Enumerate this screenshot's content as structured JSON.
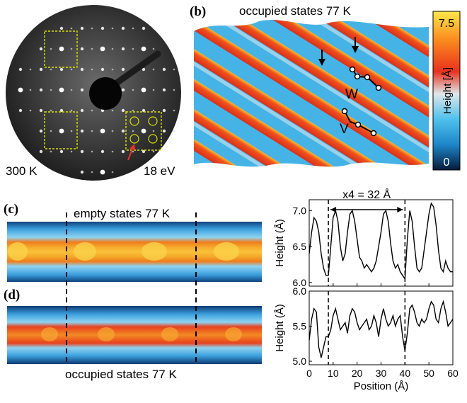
{
  "panels": {
    "a": {
      "label": "(a)",
      "temperature": "300 K",
      "energy": "18 eV"
    },
    "b": {
      "label": "(b)",
      "title": "occupied states  77 K",
      "colorbar": {
        "max": "7.5",
        "min": "0",
        "label": "Height [Å]",
        "colors": [
          "#fde84a",
          "#fb8a1e",
          "#e8321e",
          "#dfe6ea",
          "#4fc1ec",
          "#1d86c9",
          "#071a3a"
        ]
      },
      "chain_labels": [
        "W",
        "V"
      ]
    },
    "c": {
      "label": "(c)",
      "title": "empty states  77 K"
    },
    "d": {
      "label": "(d)",
      "title": "occupied states  77 K"
    }
  },
  "chart_data": [
    {
      "type": "line",
      "annotation": "x4 = 32 Å",
      "ylabel": "Height (Å)",
      "ylim": [
        5.95,
        7.15
      ],
      "yticks": [
        "6.0",
        "6.5",
        "7.0"
      ],
      "xlim": [
        0,
        60
      ],
      "vlines": [
        8,
        40
      ],
      "x": [
        0,
        1,
        2,
        3,
        4,
        5,
        6,
        7,
        8,
        9,
        10,
        11,
        12,
        13,
        14,
        15,
        16,
        17,
        18,
        19,
        20,
        21,
        22,
        23,
        24,
        25,
        26,
        27,
        28,
        29,
        30,
        31,
        32,
        33,
        34,
        35,
        36,
        37,
        38,
        39,
        40,
        41,
        42,
        43,
        44,
        45,
        46,
        47,
        48,
        49,
        50,
        51,
        52,
        53,
        54,
        55,
        56,
        57,
        58,
        59,
        60
      ],
      "y": [
        6.4,
        6.7,
        6.9,
        6.85,
        6.7,
        6.4,
        6.2,
        6.1,
        6.1,
        6.5,
        6.9,
        7.0,
        6.85,
        6.5,
        6.3,
        6.4,
        6.7,
        6.95,
        7.0,
        6.85,
        6.6,
        6.35,
        6.3,
        6.2,
        6.25,
        6.2,
        6.15,
        6.2,
        6.3,
        6.5,
        6.7,
        6.95,
        7.0,
        6.85,
        6.55,
        6.3,
        6.2,
        6.25,
        6.15,
        6.1,
        6.05,
        6.6,
        7.0,
        6.85,
        6.5,
        6.2,
        6.15,
        6.2,
        6.45,
        6.7,
        6.95,
        7.1,
        7.05,
        6.8,
        6.45,
        6.2,
        6.15,
        6.3,
        6.2,
        6.15,
        6.15
      ]
    },
    {
      "type": "line",
      "ylabel": "Height (Å)",
      "xlabel": "Position (Å)",
      "ylim": [
        4.95,
        6.0
      ],
      "yticks": [
        "5.0",
        "5.5",
        "6.0"
      ],
      "xlim": [
        0,
        60
      ],
      "xticks": [
        "0",
        "10",
        "20",
        "30",
        "40",
        "50",
        "60"
      ],
      "vlines": [
        8,
        40
      ],
      "x": [
        0,
        1,
        2,
        3,
        4,
        5,
        6,
        7,
        8,
        9,
        10,
        11,
        12,
        13,
        14,
        15,
        16,
        17,
        18,
        19,
        20,
        21,
        22,
        23,
        24,
        25,
        26,
        27,
        28,
        29,
        30,
        31,
        32,
        33,
        34,
        35,
        36,
        37,
        38,
        39,
        40,
        41,
        42,
        43,
        44,
        45,
        46,
        47,
        48,
        49,
        50,
        51,
        52,
        53,
        54,
        55,
        56,
        57,
        58,
        59,
        60
      ],
      "y": [
        5.3,
        5.6,
        5.75,
        5.7,
        5.2,
        5.05,
        5.2,
        5.35,
        5.35,
        5.45,
        5.65,
        5.75,
        5.6,
        5.45,
        5.5,
        5.55,
        5.4,
        5.65,
        5.75,
        5.7,
        5.55,
        5.45,
        5.5,
        5.55,
        5.6,
        5.45,
        5.5,
        5.65,
        5.55,
        5.35,
        5.6,
        5.75,
        5.6,
        5.5,
        5.55,
        5.65,
        5.5,
        5.6,
        5.65,
        5.35,
        5.15,
        5.4,
        5.75,
        5.8,
        5.7,
        5.55,
        5.5,
        5.6,
        5.55,
        5.6,
        5.75,
        5.85,
        5.8,
        5.6,
        5.55,
        5.75,
        5.85,
        5.7,
        5.5,
        5.55,
        5.6
      ]
    }
  ]
}
